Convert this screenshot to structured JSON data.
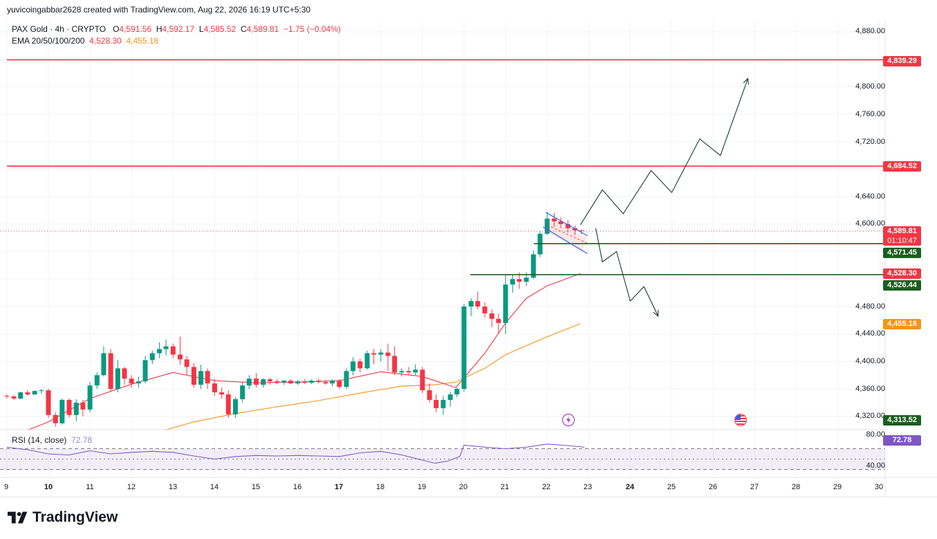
{
  "credit": "yuvicoingabbar2628 created with TradingView.com, Aug 22, 2026 16:19 UTC+5:30",
  "legend": {
    "symbol": "PAX Gold · 4h · CRYPTO",
    "o_label": "O",
    "o": "4,591.56",
    "h_label": "H",
    "h": "4,592.17",
    "l_label": "L",
    "l": "4,585.52",
    "c_label": "C",
    "c": "4,589.81",
    "change": "−1.75 (−0.04%)",
    "ema_label": "EMA 20/50/100/200",
    "ema20": "4,528.30",
    "ema50": "4,455.18"
  },
  "rsi": {
    "label": "RSI (14, close)",
    "value": "72.78"
  },
  "brand": "TradingView",
  "colors": {
    "up": "#089981",
    "down": "#f23645",
    "ema20": "#f23645",
    "ema50": "#f7931a",
    "rsi": "#7e57c2",
    "resistance": "#f23645",
    "support": "#1b5e20",
    "projection": "#1b3a2a"
  },
  "price_axis": [
    "4,880.00",
    "4,800.00",
    "4,760.00",
    "4,720.00",
    "4,640.00",
    "4,600.00",
    "4,480.00",
    "4,440.00",
    "4,400.00",
    "4,360.00",
    "4,320.00"
  ],
  "rsi_axis": [
    "80.00",
    "40.00"
  ],
  "time_axis": [
    "9",
    "10",
    "11",
    "12",
    "13",
    "14",
    "15",
    "16",
    "17",
    "18",
    "19",
    "20",
    "21",
    "22",
    "23",
    "24",
    "25",
    "26",
    "27",
    "28",
    "29",
    "30"
  ],
  "tags": {
    "r1": "4,839.29",
    "r2": "4,684.52",
    "last": "4,589.81",
    "countdown": "01:10:47",
    "s1": "4,571.45",
    "ema20": "4,528.30",
    "s2": "4,526.44",
    "ema50": "4,455.18",
    "low": "4,313.52",
    "rsi": "72.78"
  },
  "chart_data": {
    "type": "candlestick",
    "symbol": "PAX Gold",
    "interval": "4h",
    "x_axis": "days of month (Aug 2026)",
    "ylim": [
      4300,
      4890
    ],
    "candles": [
      [
        9.0,
        4350,
        4352,
        4346,
        4349
      ],
      [
        9.17,
        4349,
        4351,
        4344,
        4346
      ],
      [
        9.33,
        4346,
        4356,
        4345,
        4355
      ],
      [
        9.5,
        4355,
        4358,
        4350,
        4352
      ],
      [
        9.67,
        4352,
        4358,
        4351,
        4357
      ],
      [
        9.83,
        4357,
        4360,
        4353,
        4358
      ],
      [
        10.0,
        4358,
        4360,
        4318,
        4322
      ],
      [
        10.17,
        4322,
        4326,
        4305,
        4310
      ],
      [
        10.33,
        4310,
        4346,
        4308,
        4344
      ],
      [
        10.5,
        4344,
        4346,
        4318,
        4322
      ],
      [
        10.67,
        4322,
        4345,
        4313,
        4340
      ],
      [
        10.83,
        4340,
        4344,
        4320,
        4330
      ],
      [
        11.0,
        4330,
        4370,
        4326,
        4365
      ],
      [
        11.17,
        4365,
        4384,
        4360,
        4380
      ],
      [
        11.33,
        4380,
        4422,
        4378,
        4412
      ],
      [
        11.5,
        4412,
        4418,
        4356,
        4360
      ],
      [
        11.67,
        4360,
        4402,
        4355,
        4390
      ],
      [
        11.83,
        4390,
        4392,
        4366,
        4375
      ],
      [
        12.0,
        4375,
        4380,
        4362,
        4368
      ],
      [
        12.17,
        4368,
        4378,
        4362,
        4371
      ],
      [
        12.33,
        4371,
        4408,
        4368,
        4402
      ],
      [
        12.5,
        4402,
        4416,
        4396,
        4412
      ],
      [
        12.67,
        4412,
        4428,
        4405,
        4418
      ],
      [
        12.83,
        4418,
        4432,
        4408,
        4422
      ],
      [
        13.0,
        4422,
        4426,
        4405,
        4410
      ],
      [
        13.17,
        4410,
        4436,
        4395,
        4403
      ],
      [
        13.33,
        4403,
        4408,
        4380,
        4392
      ],
      [
        13.5,
        4392,
        4398,
        4362,
        4366
      ],
      [
        13.67,
        4366,
        4395,
        4360,
        4386
      ],
      [
        13.83,
        4386,
        4390,
        4360,
        4368
      ],
      [
        14.0,
        4368,
        4375,
        4350,
        4355
      ],
      [
        14.17,
        4355,
        4362,
        4346,
        4352
      ],
      [
        14.33,
        4352,
        4358,
        4318,
        4323
      ],
      [
        14.5,
        4323,
        4348,
        4318,
        4345
      ],
      [
        14.67,
        4345,
        4370,
        4340,
        4365
      ],
      [
        14.83,
        4365,
        4380,
        4360,
        4375
      ],
      [
        15.0,
        4375,
        4383,
        4362,
        4366
      ],
      [
        15.17,
        4366,
        4376,
        4362,
        4374
      ],
      [
        15.33,
        4374,
        4376,
        4366,
        4371
      ],
      [
        15.5,
        4371,
        4374,
        4367,
        4369
      ],
      [
        15.67,
        4369,
        4373,
        4366,
        4372
      ],
      [
        15.83,
        4372,
        4374,
        4367,
        4368
      ],
      [
        16.0,
        4368,
        4373,
        4366,
        4371
      ],
      [
        16.17,
        4371,
        4374,
        4367,
        4369
      ],
      [
        16.33,
        4369,
        4374,
        4367,
        4372
      ],
      [
        16.5,
        4372,
        4375,
        4368,
        4370
      ],
      [
        16.67,
        4370,
        4373,
        4366,
        4368
      ],
      [
        16.83,
        4368,
        4374,
        4364,
        4372
      ],
      [
        17.0,
        4372,
        4374,
        4360,
        4363
      ],
      [
        17.17,
        4363,
        4390,
        4360,
        4386
      ],
      [
        17.33,
        4386,
        4406,
        4380,
        4400
      ],
      [
        17.5,
        4400,
        4404,
        4384,
        4390
      ],
      [
        17.67,
        4390,
        4416,
        4388,
        4412
      ],
      [
        17.83,
        4412,
        4418,
        4396,
        4410
      ],
      [
        18.0,
        4410,
        4418,
        4400,
        4413
      ],
      [
        18.17,
        4413,
        4426,
        4386,
        4408
      ],
      [
        18.33,
        4408,
        4422,
        4380,
        4384
      ],
      [
        18.5,
        4384,
        4390,
        4378,
        4386
      ],
      [
        18.67,
        4386,
        4392,
        4380,
        4384
      ],
      [
        18.83,
        4384,
        4396,
        4380,
        4388
      ],
      [
        19.0,
        4388,
        4392,
        4354,
        4358
      ],
      [
        19.17,
        4358,
        4368,
        4340,
        4344
      ],
      [
        19.33,
        4344,
        4352,
        4326,
        4332
      ],
      [
        19.5,
        4332,
        4350,
        4322,
        4344
      ],
      [
        19.67,
        4344,
        4356,
        4334,
        4352
      ],
      [
        19.83,
        4352,
        4362,
        4348,
        4360
      ],
      [
        20.0,
        4360,
        4484,
        4356,
        4480
      ],
      [
        20.17,
        4480,
        4492,
        4466,
        4488
      ],
      [
        20.33,
        4488,
        4502,
        4476,
        4480
      ],
      [
        20.5,
        4480,
        4486,
        4464,
        4470
      ],
      [
        20.67,
        4470,
        4476,
        4450,
        4462
      ],
      [
        20.83,
        4462,
        4470,
        4440,
        4456
      ],
      [
        21.0,
        4456,
        4526,
        4440,
        4512
      ],
      [
        21.17,
        4512,
        4526,
        4500,
        4520
      ],
      [
        21.33,
        4520,
        4530,
        4506,
        4516
      ],
      [
        21.5,
        4516,
        4530,
        4510,
        4522
      ],
      [
        21.67,
        4522,
        4562,
        4520,
        4556
      ],
      [
        21.83,
        4556,
        4590,
        4552,
        4586
      ],
      [
        22.0,
        4586,
        4618,
        4584,
        4608
      ],
      [
        22.17,
        4608,
        4616,
        4596,
        4604
      ],
      [
        22.33,
        4604,
        4610,
        4594,
        4600
      ],
      [
        22.5,
        4600,
        4606,
        4588,
        4594
      ],
      [
        22.67,
        4594,
        4598,
        4584,
        4591
      ],
      [
        22.83,
        4591,
        4592,
        4585,
        4590
      ]
    ],
    "ema20": [
      [
        9.5,
        4300
      ],
      [
        10,
        4312
      ],
      [
        11,
        4346
      ],
      [
        12,
        4367
      ],
      [
        13,
        4384
      ],
      [
        14,
        4372
      ],
      [
        15,
        4369
      ],
      [
        16,
        4370
      ],
      [
        17,
        4372
      ],
      [
        18,
        4385
      ],
      [
        19,
        4378
      ],
      [
        19.8,
        4362
      ],
      [
        20.5,
        4412
      ],
      [
        21,
        4456
      ],
      [
        21.5,
        4492
      ],
      [
        22,
        4510
      ],
      [
        22.8,
        4528
      ]
    ],
    "ema50": [
      [
        12.8,
        4300
      ],
      [
        13.5,
        4312
      ],
      [
        14.5,
        4324
      ],
      [
        15.5,
        4334
      ],
      [
        16.5,
        4343
      ],
      [
        17.5,
        4354
      ],
      [
        18.5,
        4364
      ],
      [
        19.3,
        4366
      ],
      [
        19.8,
        4370
      ],
      [
        20.5,
        4390
      ],
      [
        21,
        4410
      ],
      [
        21.5,
        4423
      ],
      [
        22,
        4436
      ],
      [
        22.8,
        4455
      ]
    ],
    "rsi": [
      [
        9,
        73
      ],
      [
        9.5,
        68
      ],
      [
        10,
        60
      ],
      [
        10.5,
        58
      ],
      [
        11,
        66
      ],
      [
        11.5,
        60
      ],
      [
        12,
        63
      ],
      [
        12.5,
        65
      ],
      [
        13,
        63
      ],
      [
        13.5,
        56
      ],
      [
        14,
        50
      ],
      [
        14.5,
        55
      ],
      [
        15,
        57
      ],
      [
        15.5,
        56
      ],
      [
        16,
        57
      ],
      [
        16.5,
        56
      ],
      [
        17,
        55
      ],
      [
        17.5,
        62
      ],
      [
        18,
        65
      ],
      [
        18.5,
        58
      ],
      [
        19,
        48
      ],
      [
        19.3,
        42
      ],
      [
        19.6,
        46
      ],
      [
        19.9,
        55
      ],
      [
        20,
        77
      ],
      [
        20.5,
        73
      ],
      [
        21,
        70
      ],
      [
        21.5,
        73
      ],
      [
        22,
        79
      ],
      [
        22.5,
        76
      ],
      [
        22.9,
        73
      ]
    ],
    "levels": [
      {
        "label": "4,839.29",
        "value": 4839.29,
        "color": "#f23645"
      },
      {
        "label": "4,684.52",
        "value": 4684.52,
        "color": "#f23645"
      },
      {
        "label": "4,571.45",
        "value": 4571.45,
        "color": "#1b5e20"
      },
      {
        "label": "4,526.44",
        "value": 4526.44,
        "color": "#1b5e20"
      }
    ],
    "projection_up": [
      [
        22.8,
        4599
      ],
      [
        23.33,
        4650
      ],
      [
        23.83,
        4615
      ],
      [
        24.5,
        4678
      ],
      [
        25.0,
        4646
      ],
      [
        25.67,
        4724
      ],
      [
        26.17,
        4700
      ],
      [
        26.83,
        4812
      ]
    ],
    "projection_down": [
      [
        23.17,
        4594
      ],
      [
        23.33,
        4545
      ],
      [
        23.67,
        4560
      ],
      [
        24.0,
        4488
      ],
      [
        24.33,
        4509
      ],
      [
        24.67,
        4466
      ]
    ]
  }
}
